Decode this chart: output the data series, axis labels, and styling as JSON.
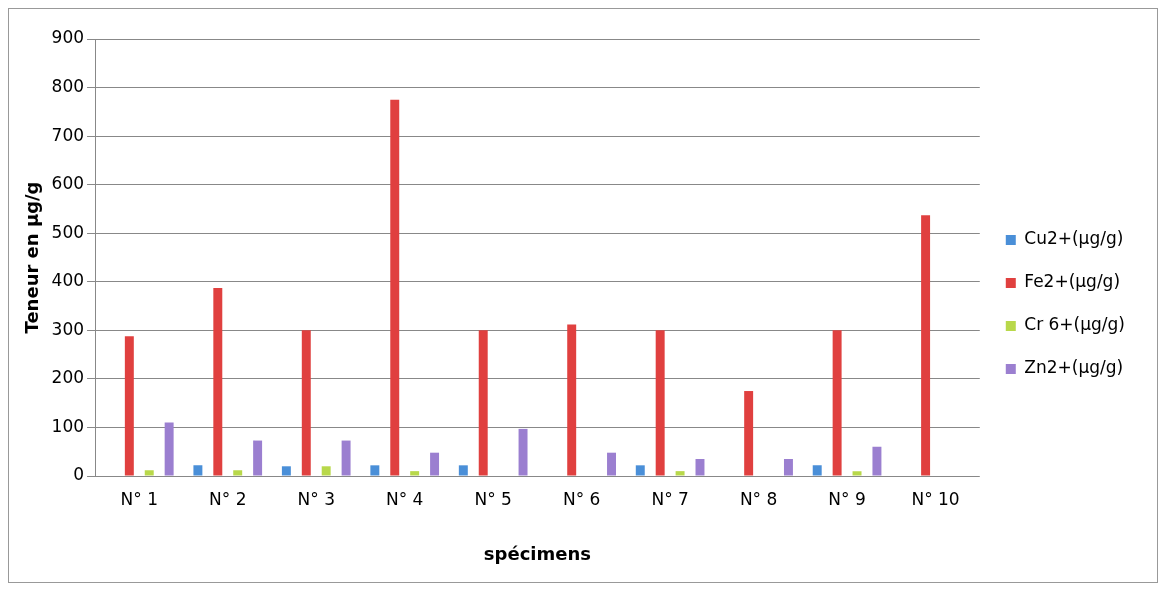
{
  "chart_data": {
    "type": "bar",
    "xlabel": "spécimens",
    "ylabel": "Teneur en µg/g",
    "categories": [
      "N° 1",
      "N° 2",
      "N° 3",
      "N° 4",
      "N° 5",
      "N° 6",
      "N° 7",
      "N° 8",
      "N° 9",
      "N° 10"
    ],
    "series": [
      {
        "name": "Cu2+(µg/g)",
        "color": "#4a8fd8",
        "values": [
          null,
          22,
          20,
          22,
          22,
          null,
          22,
          null,
          22,
          null
        ]
      },
      {
        "name": "Fe2+(µg/g)",
        "color": "#e0403f",
        "values": [
          288,
          387,
          300,
          775,
          300,
          312,
          300,
          175,
          300,
          537
        ]
      },
      {
        "name": "Cr 6+(µg/g)",
        "color": "#b8d84a",
        "values": [
          12,
          12,
          20,
          10,
          null,
          null,
          10,
          null,
          10,
          null
        ]
      },
      {
        "name": "Zn2+(µg/g)",
        "color": "#9b7fd0",
        "values": [
          110,
          73,
          73,
          48,
          97,
          48,
          35,
          35,
          60,
          null
        ]
      }
    ],
    "ylim": [
      0,
      900
    ],
    "yticks": [
      0,
      100,
      200,
      300,
      400,
      500,
      600,
      700,
      800,
      900
    ],
    "grid": "y",
    "legend": "right"
  }
}
